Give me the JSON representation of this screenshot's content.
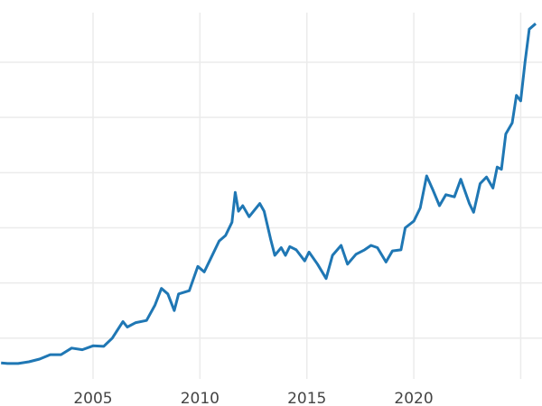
{
  "chart_data": {
    "type": "line",
    "title": "",
    "xlabel": "",
    "ylabel": "",
    "xlim": [
      2000.65,
      2025.7
    ],
    "ylim": [
      130,
      3450
    ],
    "grid": true,
    "x_ticks": [
      2005,
      2010,
      2015,
      2020,
      2025
    ],
    "x_tick_labels": [
      "2005",
      "2010",
      "2015",
      "2020",
      ""
    ],
    "y_gridlines": [
      500,
      1000,
      1500,
      2000,
      2500,
      3000
    ],
    "line_color": "#1f77b4",
    "series": [
      {
        "x": [
          2000.7,
          2001,
          2001.5,
          2002,
          2002.5,
          2003,
          2003.5,
          2004,
          2004.5,
          2005,
          2005.5,
          2005.9,
          2006.4,
          2006.6,
          2007,
          2007.5,
          2007.9,
          2008.2,
          2008.5,
          2008.8,
          2009,
          2009.5,
          2009.9,
          2010.2,
          2010.5,
          2010.9,
          2011.2,
          2011.5,
          2011.65,
          2011.8,
          2012,
          2012.3,
          2012.8,
          2013,
          2013.3,
          2013.5,
          2013.8,
          2014,
          2014.2,
          2014.5,
          2014.9,
          2015.1,
          2015.5,
          2015.9,
          2016.2,
          2016.6,
          2016.9,
          2017.3,
          2017.7,
          2018,
          2018.3,
          2018.7,
          2019,
          2019.4,
          2019.6,
          2020,
          2020.3,
          2020.6,
          2020.9,
          2021.2,
          2021.5,
          2021.9,
          2022.2,
          2022.6,
          2022.8,
          2023.1,
          2023.4,
          2023.7,
          2023.9,
          2024.1,
          2024.3,
          2024.6,
          2024.8,
          2025,
          2025.2,
          2025.4,
          2025.7
        ],
        "y": [
          275,
          270,
          270,
          285,
          310,
          350,
          350,
          410,
          395,
          430,
          425,
          500,
          650,
          600,
          640,
          660,
          800,
          950,
          900,
          750,
          900,
          930,
          1150,
          1100,
          1220,
          1380,
          1430,
          1550,
          1820,
          1650,
          1700,
          1600,
          1720,
          1650,
          1400,
          1250,
          1320,
          1250,
          1330,
          1300,
          1200,
          1280,
          1170,
          1040,
          1250,
          1340,
          1170,
          1260,
          1300,
          1340,
          1320,
          1190,
          1290,
          1300,
          1500,
          1560,
          1680,
          1970,
          1840,
          1700,
          1800,
          1780,
          1940,
          1720,
          1640,
          1900,
          1960,
          1860,
          2050,
          2030,
          2350,
          2450,
          2700,
          2650,
          3000,
          3300,
          3350
        ]
      }
    ]
  }
}
